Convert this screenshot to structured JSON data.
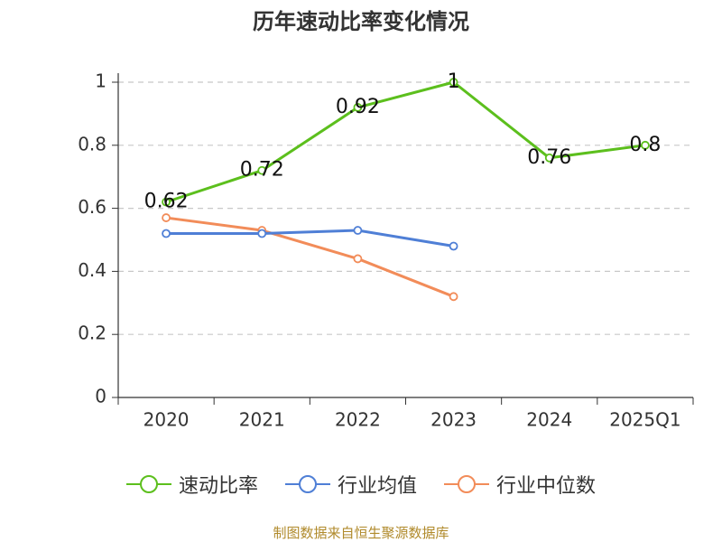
{
  "chart_data": {
    "type": "line",
    "title": "历年速动比率变化情况",
    "categories": [
      "2020",
      "2021",
      "2022",
      "2023",
      "2024",
      "2025Q1"
    ],
    "yticks": [
      "0",
      "0.2",
      "0.4",
      "0.6",
      "0.8",
      "1"
    ],
    "ylim": [
      0,
      1
    ],
    "grid": true,
    "legend_position": "bottom",
    "series": [
      {
        "name": "速动比率",
        "color": "#5cbf1d",
        "values": [
          0.62,
          0.72,
          0.92,
          1,
          0.76,
          0.8
        ],
        "labels": [
          "0.62",
          "0.72",
          "0.92",
          "1",
          "0.76",
          "0.8"
        ]
      },
      {
        "name": "行业均值",
        "color": "#4f7fd6",
        "values": [
          0.52,
          0.52,
          0.53,
          0.48,
          null,
          null
        ],
        "labels": []
      },
      {
        "name": "行业中位数",
        "color": "#f28c59",
        "values": [
          0.57,
          0.53,
          0.44,
          0.32,
          null,
          null
        ],
        "labels": []
      }
    ],
    "source": "制图数据来自恒生聚源数据库"
  }
}
